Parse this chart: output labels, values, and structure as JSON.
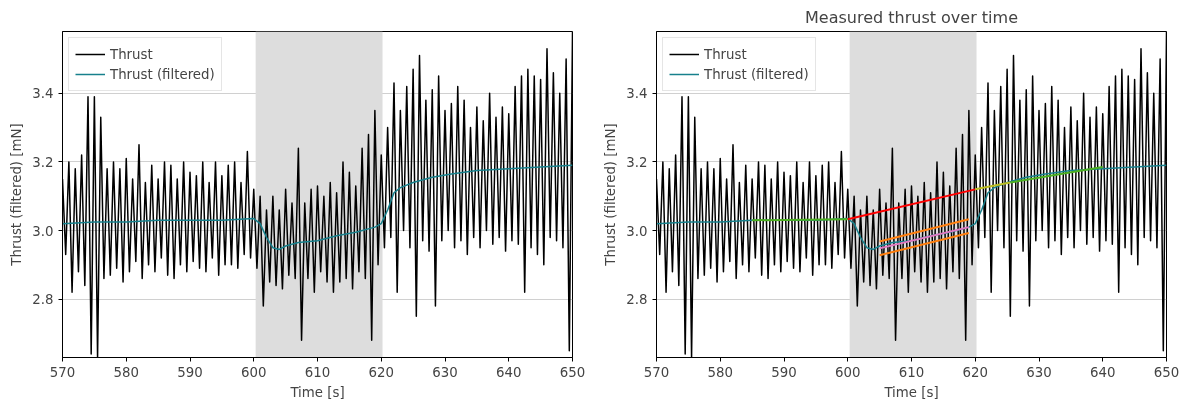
{
  "chart_data": [
    {
      "type": "line",
      "xlabel": "Time [s]",
      "ylabel": "Thrust (filtered) [mN]",
      "xlim": [
        570,
        650
      ],
      "ylim": [
        2.63,
        3.58
      ],
      "xticks": [
        570,
        580,
        590,
        600,
        610,
        620,
        630,
        640,
        650
      ],
      "yticks": [
        2.8,
        {
          "value": 3,
          "label": "3.0"
        },
        3.2,
        3.4
      ],
      "grid": "y",
      "legend": "top left",
      "bands": [
        {
          "axis": "x",
          "from": 600.3,
          "to": 620.2,
          "color": "#dddddd"
        }
      ],
      "x": [
        570,
        570.5,
        571,
        571.5,
        572,
        572.5,
        573,
        573.5,
        574,
        574.5,
        575,
        575.5,
        576,
        576.5,
        577,
        577.5,
        578,
        578.5,
        579,
        579.5,
        580,
        580.5,
        581,
        581.5,
        582,
        582.5,
        583,
        583.5,
        584,
        584.5,
        585,
        585.5,
        586,
        586.5,
        587,
        587.5,
        588,
        588.5,
        589,
        589.5,
        590,
        590.5,
        591,
        591.5,
        592,
        592.5,
        593,
        593.5,
        594,
        594.5,
        595,
        595.5,
        596,
        596.5,
        597,
        597.5,
        598,
        598.5,
        599,
        599.5,
        600,
        600.5,
        601,
        601.5,
        602,
        602.5,
        603,
        603.5,
        604,
        604.5,
        605,
        605.5,
        606,
        606.5,
        607,
        607.5,
        608,
        608.5,
        609,
        609.5,
        610,
        610.5,
        611,
        611.5,
        612,
        612.5,
        613,
        613.5,
        614,
        614.5,
        615,
        615.5,
        616,
        616.5,
        617,
        617.5,
        618,
        618.5,
        619,
        619.5,
        620,
        620.5,
        621,
        621.5,
        622,
        622.5,
        623,
        623.5,
        624,
        624.5,
        625,
        625.5,
        626,
        626.5,
        627,
        627.5,
        628,
        628.5,
        629,
        629.5,
        630,
        630.5,
        631,
        631.5,
        632,
        632.5,
        633,
        633.5,
        634,
        634.5,
        635,
        635.5,
        636,
        636.5,
        637,
        637.5,
        638,
        638.5,
        639,
        639.5,
        640,
        640.5,
        641,
        641.5,
        642,
        642.5,
        643,
        643.5,
        644,
        644.5,
        645,
        645.5,
        646,
        646.5,
        647,
        647.5,
        648,
        648.5,
        649,
        649.5,
        650
      ],
      "series": [
        {
          "name": "Thrust",
          "color": "#000000",
          "values": [
            3.15,
            2.93,
            3.2,
            2.82,
            3.18,
            2.88,
            3.22,
            2.84,
            3.39,
            2.64,
            3.39,
            2.63,
            3.33,
            2.86,
            3.18,
            2.87,
            3.2,
            2.89,
            3.18,
            2.85,
            3.21,
            2.88,
            3.15,
            2.91,
            3.25,
            2.86,
            3.14,
            2.9,
            3.19,
            2.88,
            3.15,
            2.92,
            3.2,
            2.87,
            3.19,
            2.86,
            3.15,
            2.9,
            3.2,
            2.88,
            3.17,
            2.91,
            3.16,
            2.89,
            3.2,
            2.88,
            3.14,
            2.92,
            3.2,
            2.87,
            3.16,
            2.9,
            3.19,
            2.9,
            3.2,
            2.89,
            3.14,
            2.93,
            3.23,
            2.92,
            3.12,
            2.89,
            3.1,
            2.78,
            3.06,
            2.85,
            3.1,
            2.84,
            3.06,
            2.83,
            3.12,
            2.87,
            3.08,
            2.86,
            3.24,
            2.68,
            3.08,
            2.86,
            3.12,
            2.82,
            3.13,
            2.88,
            3.1,
            2.85,
            3.14,
            2.82,
            3.11,
            2.85,
            3.2,
            2.86,
            3.17,
            2.83,
            3.13,
            2.88,
            3.24,
            2.86,
            3.28,
            2.68,
            3.35,
            2.9,
            3.22,
            2.95,
            3.3,
            2.98,
            3.43,
            2.82,
            3.35,
            3.0,
            3.42,
            2.95,
            3.47,
            2.75,
            3.51,
            2.97,
            3.38,
            2.94,
            3.41,
            2.78,
            3.45,
            2.97,
            3.35,
            3.0,
            3.37,
            2.95,
            3.42,
            2.97,
            3.38,
            2.93,
            3.3,
            2.98,
            3.36,
            2.95,
            3.32,
            3.0,
            3.4,
            2.96,
            3.33,
            2.98,
            3.36,
            2.94,
            3.34,
            2.97,
            3.42,
            2.96,
            3.45,
            2.82,
            3.47,
            2.95,
            3.45,
            2.93,
            3.44,
            2.9,
            3.53,
            2.98,
            3.46,
            2.97,
            3.4,
            2.95,
            3.5,
            2.65,
            3.58
          ]
        },
        {
          "name": "Thrust (filtered)",
          "color": "#17808c",
          "x": [
            570,
            575,
            580,
            585,
            590,
            595,
            600,
            601,
            602,
            603,
            604,
            605,
            607,
            610,
            613,
            616,
            619,
            620,
            621,
            622,
            623,
            625,
            628,
            631,
            635,
            640,
            645,
            650
          ],
          "values": [
            3.02,
            3.025,
            3.025,
            3.03,
            3.03,
            3.03,
            3.035,
            3.02,
            2.98,
            2.95,
            2.945,
            2.955,
            2.965,
            2.97,
            2.985,
            2.995,
            3.01,
            3.02,
            3.06,
            3.11,
            3.125,
            3.14,
            3.155,
            3.165,
            3.175,
            3.18,
            3.185,
            3.19
          ]
        }
      ]
    },
    {
      "type": "line",
      "title": "Measured thrust over time",
      "xlabel": "Time [s]",
      "ylabel": "Thrust (filtered) [mN]",
      "xlim": [
        570,
        650
      ],
      "ylim": [
        2.63,
        3.58
      ],
      "xticks": [
        570,
        580,
        590,
        600,
        610,
        620,
        630,
        640,
        650
      ],
      "yticks": [
        2.8,
        {
          "value": 3,
          "label": "3.0"
        },
        3.2,
        3.4
      ],
      "grid": "y",
      "legend": "top left",
      "bands": [
        {
          "axis": "x",
          "from": 600.3,
          "to": 620.2,
          "color": "#dddddd"
        }
      ],
      "x": [
        570,
        570.5,
        571,
        571.5,
        572,
        572.5,
        573,
        573.5,
        574,
        574.5,
        575,
        575.5,
        576,
        576.5,
        577,
        577.5,
        578,
        578.5,
        579,
        579.5,
        580,
        580.5,
        581,
        581.5,
        582,
        582.5,
        583,
        583.5,
        584,
        584.5,
        585,
        585.5,
        586,
        586.5,
        587,
        587.5,
        588,
        588.5,
        589,
        589.5,
        590,
        590.5,
        591,
        591.5,
        592,
        592.5,
        593,
        593.5,
        594,
        594.5,
        595,
        595.5,
        596,
        596.5,
        597,
        597.5,
        598,
        598.5,
        599,
        599.5,
        600,
        600.5,
        601,
        601.5,
        602,
        602.5,
        603,
        603.5,
        604,
        604.5,
        605,
        605.5,
        606,
        606.5,
        607,
        607.5,
        608,
        608.5,
        609,
        609.5,
        610,
        610.5,
        611,
        611.5,
        612,
        612.5,
        613,
        613.5,
        614,
        614.5,
        615,
        615.5,
        616,
        616.5,
        617,
        617.5,
        618,
        618.5,
        619,
        619.5,
        620,
        620.5,
        621,
        621.5,
        622,
        622.5,
        623,
        623.5,
        624,
        624.5,
        625,
        625.5,
        626,
        626.5,
        627,
        627.5,
        628,
        628.5,
        629,
        629.5,
        630,
        630.5,
        631,
        631.5,
        632,
        632.5,
        633,
        633.5,
        634,
        634.5,
        635,
        635.5,
        636,
        636.5,
        637,
        637.5,
        638,
        638.5,
        639,
        639.5,
        640,
        640.5,
        641,
        641.5,
        642,
        642.5,
        643,
        643.5,
        644,
        644.5,
        645,
        645.5,
        646,
        646.5,
        647,
        647.5,
        648,
        648.5,
        649,
        649.5,
        650
      ],
      "series": [
        {
          "name": "Thrust",
          "color": "#000000",
          "values": [
            3.15,
            2.93,
            3.2,
            2.82,
            3.18,
            2.88,
            3.22,
            2.84,
            3.39,
            2.64,
            3.39,
            2.63,
            3.33,
            2.86,
            3.18,
            2.87,
            3.2,
            2.89,
            3.18,
            2.85,
            3.21,
            2.88,
            3.15,
            2.91,
            3.25,
            2.86,
            3.14,
            2.9,
            3.19,
            2.88,
            3.15,
            2.92,
            3.2,
            2.87,
            3.19,
            2.86,
            3.15,
            2.9,
            3.2,
            2.88,
            3.17,
            2.91,
            3.16,
            2.89,
            3.2,
            2.88,
            3.14,
            2.92,
            3.2,
            2.87,
            3.16,
            2.9,
            3.19,
            2.9,
            3.2,
            2.89,
            3.14,
            2.93,
            3.23,
            2.92,
            3.12,
            2.89,
            3.1,
            2.78,
            3.06,
            2.85,
            3.1,
            2.84,
            3.06,
            2.83,
            3.12,
            2.87,
            3.08,
            2.86,
            3.24,
            2.68,
            3.08,
            2.86,
            3.12,
            2.82,
            3.13,
            2.88,
            3.1,
            2.85,
            3.14,
            2.82,
            3.11,
            2.85,
            3.2,
            2.86,
            3.17,
            2.83,
            3.13,
            2.88,
            3.24,
            2.86,
            3.28,
            2.68,
            3.35,
            2.9,
            3.22,
            2.95,
            3.3,
            2.98,
            3.43,
            2.82,
            3.35,
            3.0,
            3.42,
            2.95,
            3.47,
            2.75,
            3.51,
            2.97,
            3.38,
            2.94,
            3.41,
            2.78,
            3.45,
            2.97,
            3.35,
            3.0,
            3.37,
            2.95,
            3.42,
            2.97,
            3.38,
            2.93,
            3.3,
            2.98,
            3.36,
            2.95,
            3.32,
            3.0,
            3.4,
            2.96,
            3.33,
            2.98,
            3.36,
            2.94,
            3.34,
            2.97,
            3.42,
            2.96,
            3.45,
            2.82,
            3.47,
            2.95,
            3.45,
            2.93,
            3.44,
            2.9,
            3.53,
            2.98,
            3.46,
            2.97,
            3.4,
            2.95,
            3.5,
            2.65,
            3.58
          ]
        },
        {
          "name": "Thrust (filtered)",
          "color": "#17808c",
          "x": [
            570,
            575,
            580,
            585,
            590,
            595,
            600,
            601,
            602,
            603,
            604,
            605,
            607,
            610,
            613,
            616,
            619,
            620,
            621,
            622,
            623,
            625,
            628,
            631,
            635,
            640,
            645,
            650
          ],
          "values": [
            3.02,
            3.025,
            3.025,
            3.03,
            3.03,
            3.03,
            3.035,
            3.02,
            2.98,
            2.95,
            2.945,
            2.955,
            2.965,
            2.97,
            2.985,
            2.995,
            3.01,
            3.02,
            3.06,
            3.11,
            3.125,
            3.14,
            3.155,
            3.165,
            3.175,
            3.18,
            3.185,
            3.19
          ]
        },
        {
          "color": "#4caf20",
          "x": [
            585,
            600
          ],
          "values": [
            3.03,
            3.033
          ]
        },
        {
          "color": "#ff0000",
          "x": [
            600,
            620
          ],
          "values": [
            3.033,
            3.12
          ]
        },
        {
          "color": "#bcbd22",
          "x": [
            620,
            625.5
          ],
          "values": [
            3.12,
            3.14
          ]
        },
        {
          "color": "#4caf20",
          "x": [
            625.5,
            640
          ],
          "values": [
            3.14,
            3.185
          ]
        },
        {
          "color": "#ff7f0e",
          "x": [
            605,
            619
          ],
          "values": [
            2.968,
            3.033
          ]
        },
        {
          "color": "#ff7f0e",
          "x": [
            605,
            619
          ],
          "values": [
            2.928,
            2.993
          ]
        },
        {
          "color": "#e377c2",
          "x": [
            605,
            619
          ],
          "values": [
            2.948,
            3.01
          ]
        }
      ]
    }
  ]
}
